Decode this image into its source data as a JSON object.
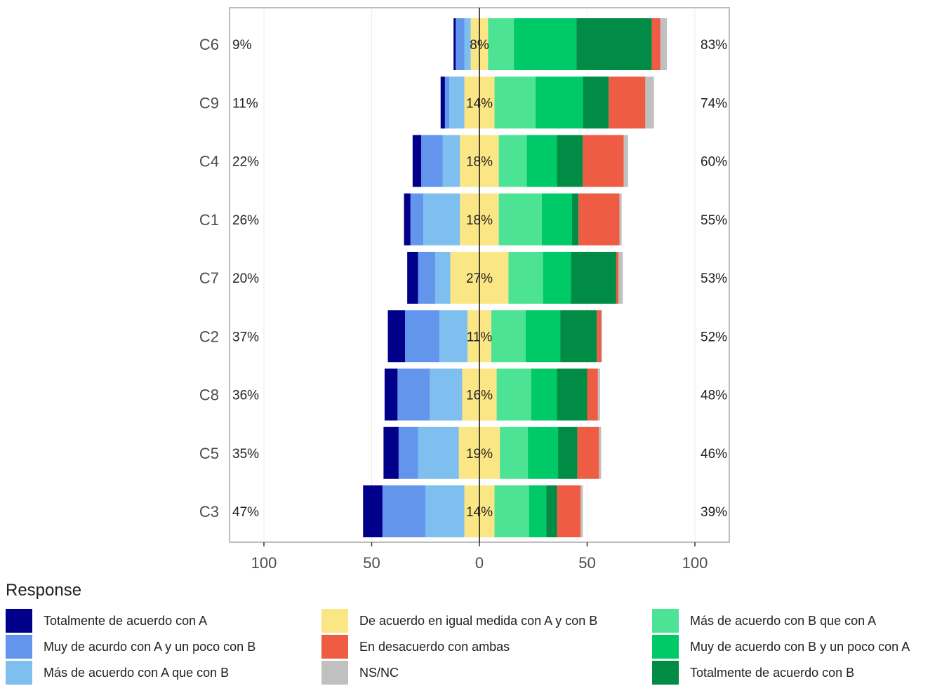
{
  "chart_data": {
    "type": "bar",
    "orientation": "diverging-horizontal-stacked",
    "categories": [
      "C6",
      "C9",
      "C4",
      "C1",
      "C7",
      "C2",
      "C8",
      "C5",
      "C3"
    ],
    "left_pct_labels": [
      "9%",
      "11%",
      "22%",
      "26%",
      "20%",
      "37%",
      "36%",
      "35%",
      "47%"
    ],
    "center_pct_labels": [
      "8%",
      "14%",
      "18%",
      "18%",
      "27%",
      "11%",
      "16%",
      "19%",
      "14%"
    ],
    "right_pct_labels": [
      "83%",
      "74%",
      "60%",
      "55%",
      "53%",
      "52%",
      "48%",
      "46%",
      "39%"
    ],
    "xaxis": {
      "ticks": [
        -100,
        -50,
        0,
        50,
        100
      ],
      "tick_labels": [
        "100",
        "50",
        "0",
        "50",
        "100"
      ],
      "xlim": [
        -100,
        100
      ]
    },
    "legend": {
      "title": "Response",
      "position": "bottom"
    },
    "series": [
      {
        "name": "Totalmente de acuerdo con A",
        "color": "#00008B",
        "side": "left",
        "values": [
          1,
          2,
          4,
          3,
          5,
          8,
          6,
          7,
          9
        ]
      },
      {
        "name": "Muy de acurdo con A y un poco con B",
        "color": "#6495ED",
        "side": "left",
        "values": [
          4,
          2,
          10,
          6,
          8,
          16,
          15,
          9,
          20
        ]
      },
      {
        "name": "Más de acuerdo con A que con B",
        "color": "#7FBFEF",
        "side": "left",
        "values": [
          3,
          7,
          8,
          17,
          7,
          13,
          15,
          19,
          18
        ]
      },
      {
        "name": "De acuerdo en igual medida con A y con B",
        "color": "#FBE686",
        "side": "center",
        "values": [
          8,
          14,
          18,
          18,
          27,
          11,
          16,
          19,
          14
        ]
      },
      {
        "name": "Más de acuerdo con B que con A",
        "color": "#4DE394",
        "side": "right",
        "values": [
          12,
          19,
          13,
          20,
          16,
          16,
          16,
          13,
          16
        ]
      },
      {
        "name": "Muy de acuerdo con B y un poco con A",
        "color": "#00C968",
        "side": "right",
        "values": [
          29,
          22,
          14,
          14,
          13,
          16,
          12,
          14,
          8
        ]
      },
      {
        "name": "Totalmente de acuerdo con B",
        "color": "#008C45",
        "side": "right",
        "values": [
          35,
          12,
          12,
          3,
          21,
          17,
          14,
          9,
          5
        ]
      },
      {
        "name": "En desacuerdo con ambas",
        "color": "#EE5D43",
        "side": "after",
        "values": [
          4,
          17,
          19,
          19,
          1,
          2,
          5,
          10,
          11
        ]
      },
      {
        "name": "NS/NC",
        "color": "#C0C0C0",
        "side": "after",
        "values": [
          3,
          4,
          2,
          1,
          2,
          0.5,
          1,
          1,
          1
        ]
      }
    ]
  },
  "legend_items": [
    {
      "label": "Totalmente de acuerdo con A",
      "color": "#00008B"
    },
    {
      "label": "Muy de acurdo con A y un poco con B",
      "color": "#6495ED"
    },
    {
      "label": "Más de acuerdo con A que con B",
      "color": "#7FBFEF"
    },
    {
      "label": "De acuerdo en igual medida con A y con B",
      "color": "#FBE686"
    },
    {
      "label": "En desacuerdo con ambas",
      "color": "#EE5D43"
    },
    {
      "label": "NS/NC",
      "color": "#C0C0C0"
    },
    {
      "label": "Más de acuerdo con B que con A",
      "color": "#4DE394"
    },
    {
      "label": "Muy de acuerdo con B y un poco con A",
      "color": "#00C968"
    },
    {
      "label": "Totalmente de acuerdo con B",
      "color": "#008C45"
    }
  ]
}
